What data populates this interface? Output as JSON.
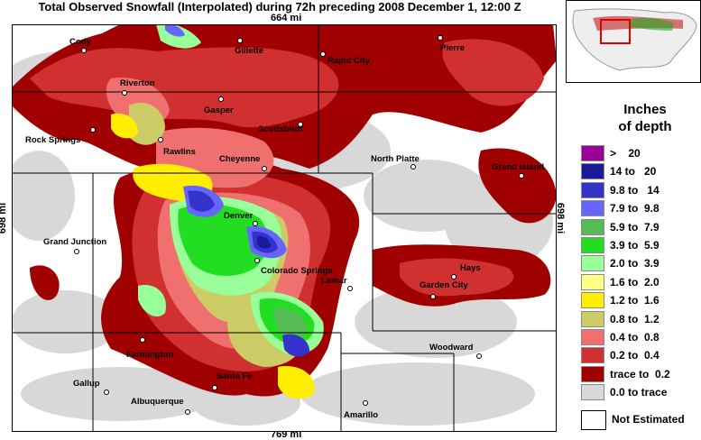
{
  "title": "Total Observed Snowfall (Interpolated) during 72h preceding 2008 December 1, 12:00 Z",
  "scale": {
    "top": "664 mi",
    "bottom": "769 mi",
    "left": "698 mi",
    "right": "698 mi"
  },
  "legend": {
    "title_line1": "Inches",
    "title_line2": "of depth",
    "items": [
      {
        "label": ">    20",
        "color": "#990099"
      },
      {
        "label": "14 to   20",
        "color": "#1a1a99"
      },
      {
        "label": "9.8 to   14",
        "color": "#3333cc"
      },
      {
        "label": "7.9 to  9.8",
        "color": "#6666ff"
      },
      {
        "label": "5.9 to  7.9",
        "color": "#55bb55"
      },
      {
        "label": "3.9 to  5.9",
        "color": "#22dd22"
      },
      {
        "label": "2.0 to  3.9",
        "color": "#99ff99"
      },
      {
        "label": "1.6 to  2.0",
        "color": "#ffff88"
      },
      {
        "label": "1.2 to  1.6",
        "color": "#ffee00"
      },
      {
        "label": "0.8 to  1.2",
        "color": "#cccc66"
      },
      {
        "label": "0.4 to  0.8",
        "color": "#f07070"
      },
      {
        "label": "0.2 to  0.4",
        "color": "#d03030"
      },
      {
        "label": "trace to  0.2",
        "color": "#a00000"
      },
      {
        "label": "0.0 to trace",
        "color": "#d8d8d8"
      }
    ],
    "not_estimated": "Not Estimated"
  },
  "cities": [
    {
      "name": "Cody"
    },
    {
      "name": "Gillette"
    },
    {
      "name": "Rapid City"
    },
    {
      "name": "Pierre"
    },
    {
      "name": "Riverton"
    },
    {
      "name": "Gasper"
    },
    {
      "name": "Scottsbluff"
    },
    {
      "name": "Rock Springs"
    },
    {
      "name": "Rawlins"
    },
    {
      "name": "Cheyenne"
    },
    {
      "name": "North Platte"
    },
    {
      "name": "Grand Island"
    },
    {
      "name": "Denver"
    },
    {
      "name": "Grand Junction"
    },
    {
      "name": "Colorado Springs"
    },
    {
      "name": "Lamar"
    },
    {
      "name": "Hays"
    },
    {
      "name": "Garden City"
    },
    {
      "name": "Farmington"
    },
    {
      "name": "Woodward"
    },
    {
      "name": "Gallup"
    },
    {
      "name": "Santa Fe"
    },
    {
      "name": "Albuquerque"
    },
    {
      "name": "Amarillo"
    }
  ]
}
